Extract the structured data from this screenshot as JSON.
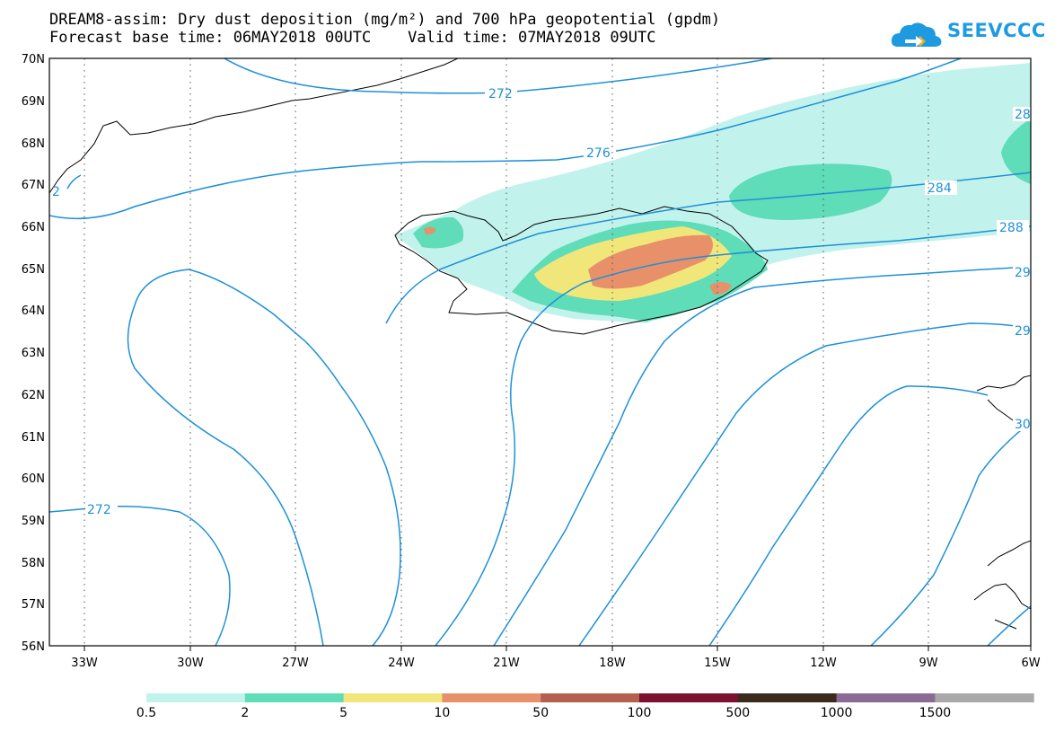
{
  "title_line1": "DREAM8-assim: Dry dust deposition (mg/m²) and 700 hPa geopotential (gpdm)",
  "title_line2": "Forecast base time: 06MAY2018 00UTC    Valid time: 07MAY2018 09UTC",
  "logo_text": "SEEVCCC",
  "map": {
    "lon_labels": [
      "33W",
      "30W",
      "27W",
      "24W",
      "21W",
      "18W",
      "15W",
      "12W",
      "9W",
      "6W"
    ],
    "lat_labels": [
      "70N",
      "69N",
      "68N",
      "67N",
      "66N",
      "65N",
      "64N",
      "63N",
      "62N",
      "61N",
      "60N",
      "59N",
      "58N",
      "57N",
      "56N"
    ],
    "contour_labels": [
      "272",
      "276",
      "284",
      "288",
      "28",
      "29",
      "29",
      "30",
      "272",
      "2"
    ],
    "contour_color": "#1e90d8"
  },
  "legend": {
    "labels": [
      "0.5",
      "2",
      "5",
      "10",
      "50",
      "100",
      "500",
      "1000",
      "1500"
    ],
    "colors": [
      "#c2f2ec",
      "#5fdcb8",
      "#f1e67a",
      "#e8906a",
      "#b5604e",
      "#7b1030",
      "#3c2a1e",
      "#8c6a96",
      "#a9a9a9"
    ]
  }
}
